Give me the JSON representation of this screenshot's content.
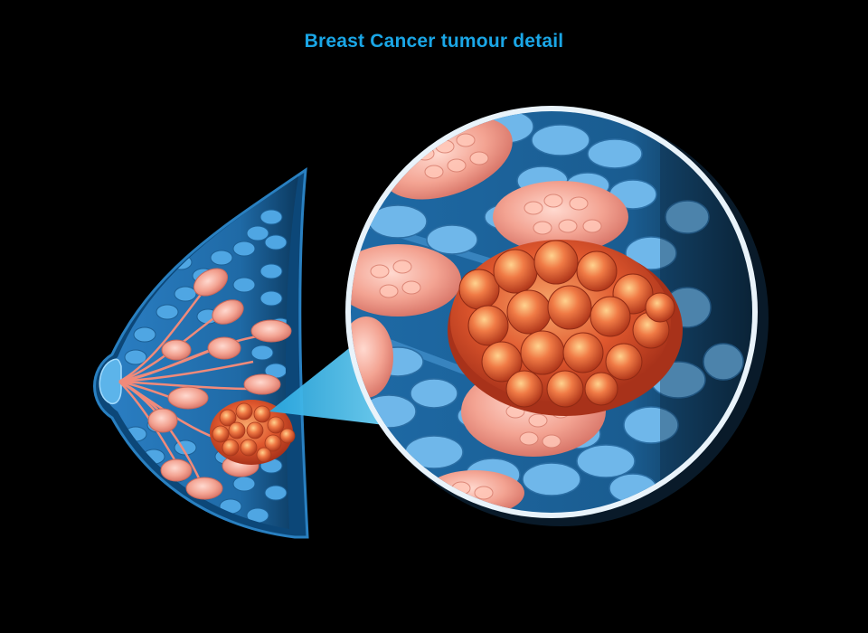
{
  "title": "Breast Cancer tumour detail",
  "colors": {
    "background": "#000000",
    "title": "#1aa6e6",
    "tissue_blue": "#3b8fd0",
    "fat_cell_light": "#8ccaf2",
    "lobule_pink": "#f4a79a",
    "tumour_red": "#d9502c",
    "magnifier_ring": "#e9f3fa",
    "callout_cyan": "#35b6ec"
  },
  "figure": {
    "subjects": [
      "breast-cross-section",
      "magnified-tumour-detail"
    ]
  }
}
